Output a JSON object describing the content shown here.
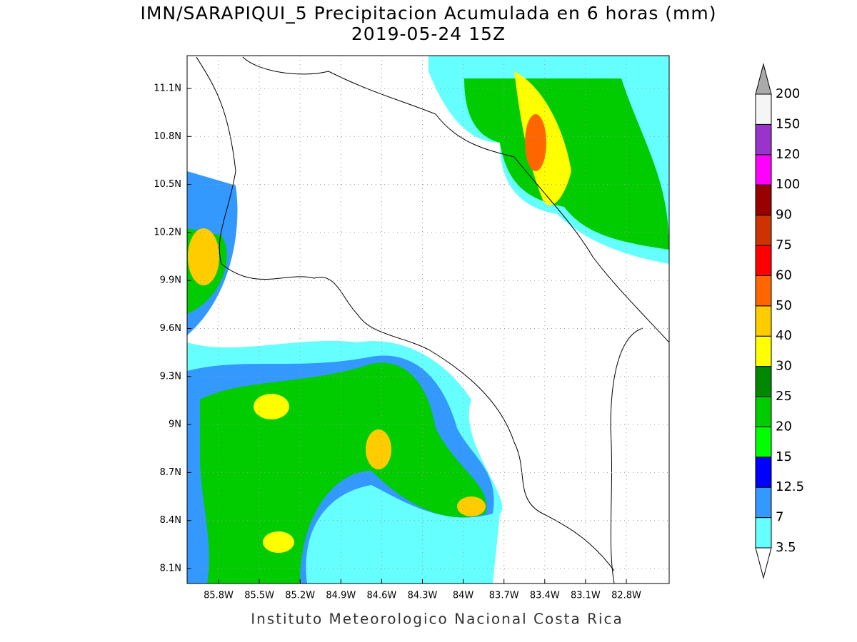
{
  "title": [
    "IMN/SARAPIQUI_5 Precipitacion Acumulada en 6 horas (mm)",
    "2019-05-24 15Z"
  ],
  "map": {
    "lat_ticks": [
      "11.1N",
      "10.8N",
      "10.5N",
      "10.2N",
      "9.9N",
      "9.6N",
      "9.3N",
      "9N",
      "8.7N",
      "8.4N",
      "8.1N"
    ],
    "lon_ticks": [
      "85.8W",
      "85.5W",
      "85.2W",
      "84.9W",
      "84.6W",
      "84.3W",
      "84W",
      "83.7W",
      "83.4W",
      "83.1W",
      "82.8W"
    ]
  },
  "colorbar": {
    "levels": [
      3.5,
      7,
      12.5,
      15,
      20,
      25,
      30,
      40,
      50,
      60,
      75,
      90,
      100,
      120,
      150,
      200
    ],
    "colors": [
      "#ffffff",
      "#66ffff",
      "#3399ff",
      "#0000ff",
      "#00ff00",
      "#00cc00",
      "#008800",
      "#ffff00",
      "#ffcc00",
      "#ff6600",
      "#ff0000",
      "#cc3300",
      "#990000",
      "#ff00ff",
      "#9933cc",
      "#f5f5f5",
      "#aaaaaa"
    ]
  },
  "footer": "Instituto Meteorologico Nacional Costa Rica"
}
